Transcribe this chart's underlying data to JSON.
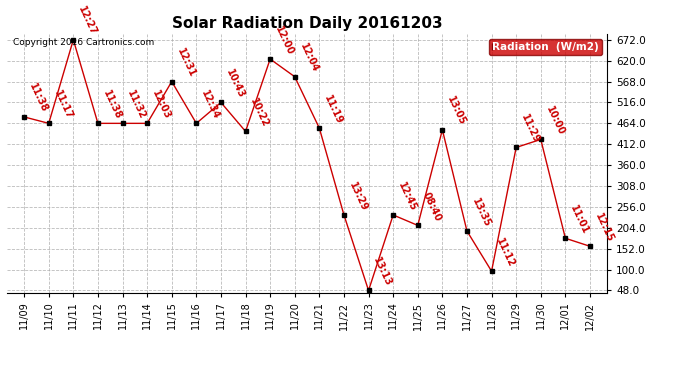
{
  "title": "Solar Radiation Daily 20161203",
  "copyright_text": "Copyright 2016 Cartronics.com",
  "legend_label": "Radiation  (W/m2)",
  "line_color": "#cc0000",
  "marker_color": "#000000",
  "background_color": "#ffffff",
  "grid_color": "#aaaaaa",
  "x_labels": [
    "11/09",
    "11/10",
    "11/11",
    "11/12",
    "11/13",
    "11/14",
    "11/15",
    "11/16",
    "11/17",
    "11/18",
    "11/19",
    "11/20",
    "11/21",
    "11/22",
    "11/23",
    "11/24",
    "11/25",
    "11/26",
    "11/27",
    "11/28",
    "11/29",
    "11/30",
    "12/01",
    "12/02"
  ],
  "y_values": [
    480,
    464,
    672,
    464,
    464,
    464,
    568,
    464,
    516,
    444,
    624,
    580,
    452,
    236,
    48,
    236,
    210,
    448,
    196,
    96,
    404,
    424,
    178,
    158
  ],
  "annotations": [
    "11:38",
    "11:17",
    "12:27",
    "11:38",
    "11:32",
    "12:03",
    "12:31",
    "12:34",
    "10:43",
    "10:22",
    "12:00",
    "12:04",
    "11:19",
    "13:29",
    "13:13",
    "12:45",
    "08:40",
    "13:05",
    "13:35",
    "11:12",
    "11:29",
    "10:00",
    "11:01",
    "12:15"
  ],
  "ylim_min": 48,
  "ylim_max": 672,
  "yticks": [
    48.0,
    100.0,
    152.0,
    204.0,
    256.0,
    308.0,
    360.0,
    412.0,
    464.0,
    516.0,
    568.0,
    620.0,
    672.0
  ],
  "annotation_color": "#cc0000",
  "annotation_fontsize": 7,
  "title_fontsize": 11,
  "legend_bg": "#cc0000",
  "legend_text_color": "#ffffff"
}
